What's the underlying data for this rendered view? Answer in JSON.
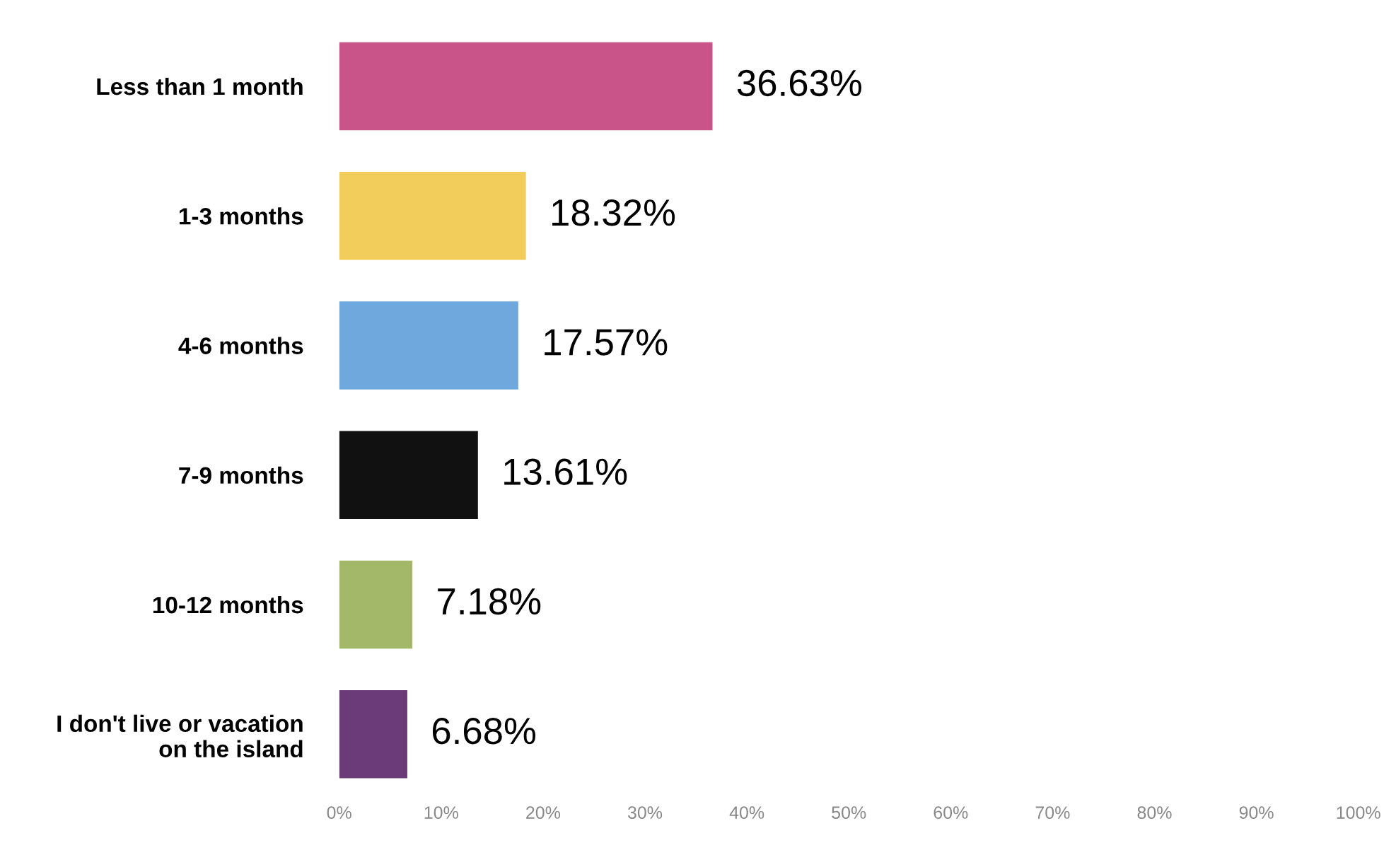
{
  "chart_data": {
    "type": "bar",
    "orientation": "horizontal",
    "categories": [
      "Less than 1 month",
      "1-3 months",
      "4-6 months",
      "7-9 months",
      "10-12 months",
      "I don't live or vacation\non the island"
    ],
    "values": [
      36.63,
      18.32,
      17.57,
      13.61,
      7.18,
      6.68
    ],
    "colors": [
      "#c9548a",
      "#f2cd5c",
      "#6fa8dc",
      "#111111",
      "#a4b86a",
      "#6b3a78"
    ],
    "value_labels": [
      "36.63%",
      "18.32%",
      "17.57%",
      "13.61%",
      "7.18%",
      "6.68%"
    ],
    "xlim": [
      0,
      100
    ],
    "xticks": [
      {
        "value": 0,
        "label": "0%"
      },
      {
        "value": 10,
        "label": "10%"
      },
      {
        "value": 20,
        "label": "20%"
      },
      {
        "value": 30,
        "label": "30%"
      },
      {
        "value": 40,
        "label": "40%"
      },
      {
        "value": 50,
        "label": "50%"
      },
      {
        "value": 60,
        "label": "60%"
      },
      {
        "value": 70,
        "label": "70%"
      },
      {
        "value": 80,
        "label": "80%"
      },
      {
        "value": 90,
        "label": "90%"
      },
      {
        "value": 100,
        "label": "100%"
      }
    ],
    "grid": false,
    "legend": false
  }
}
